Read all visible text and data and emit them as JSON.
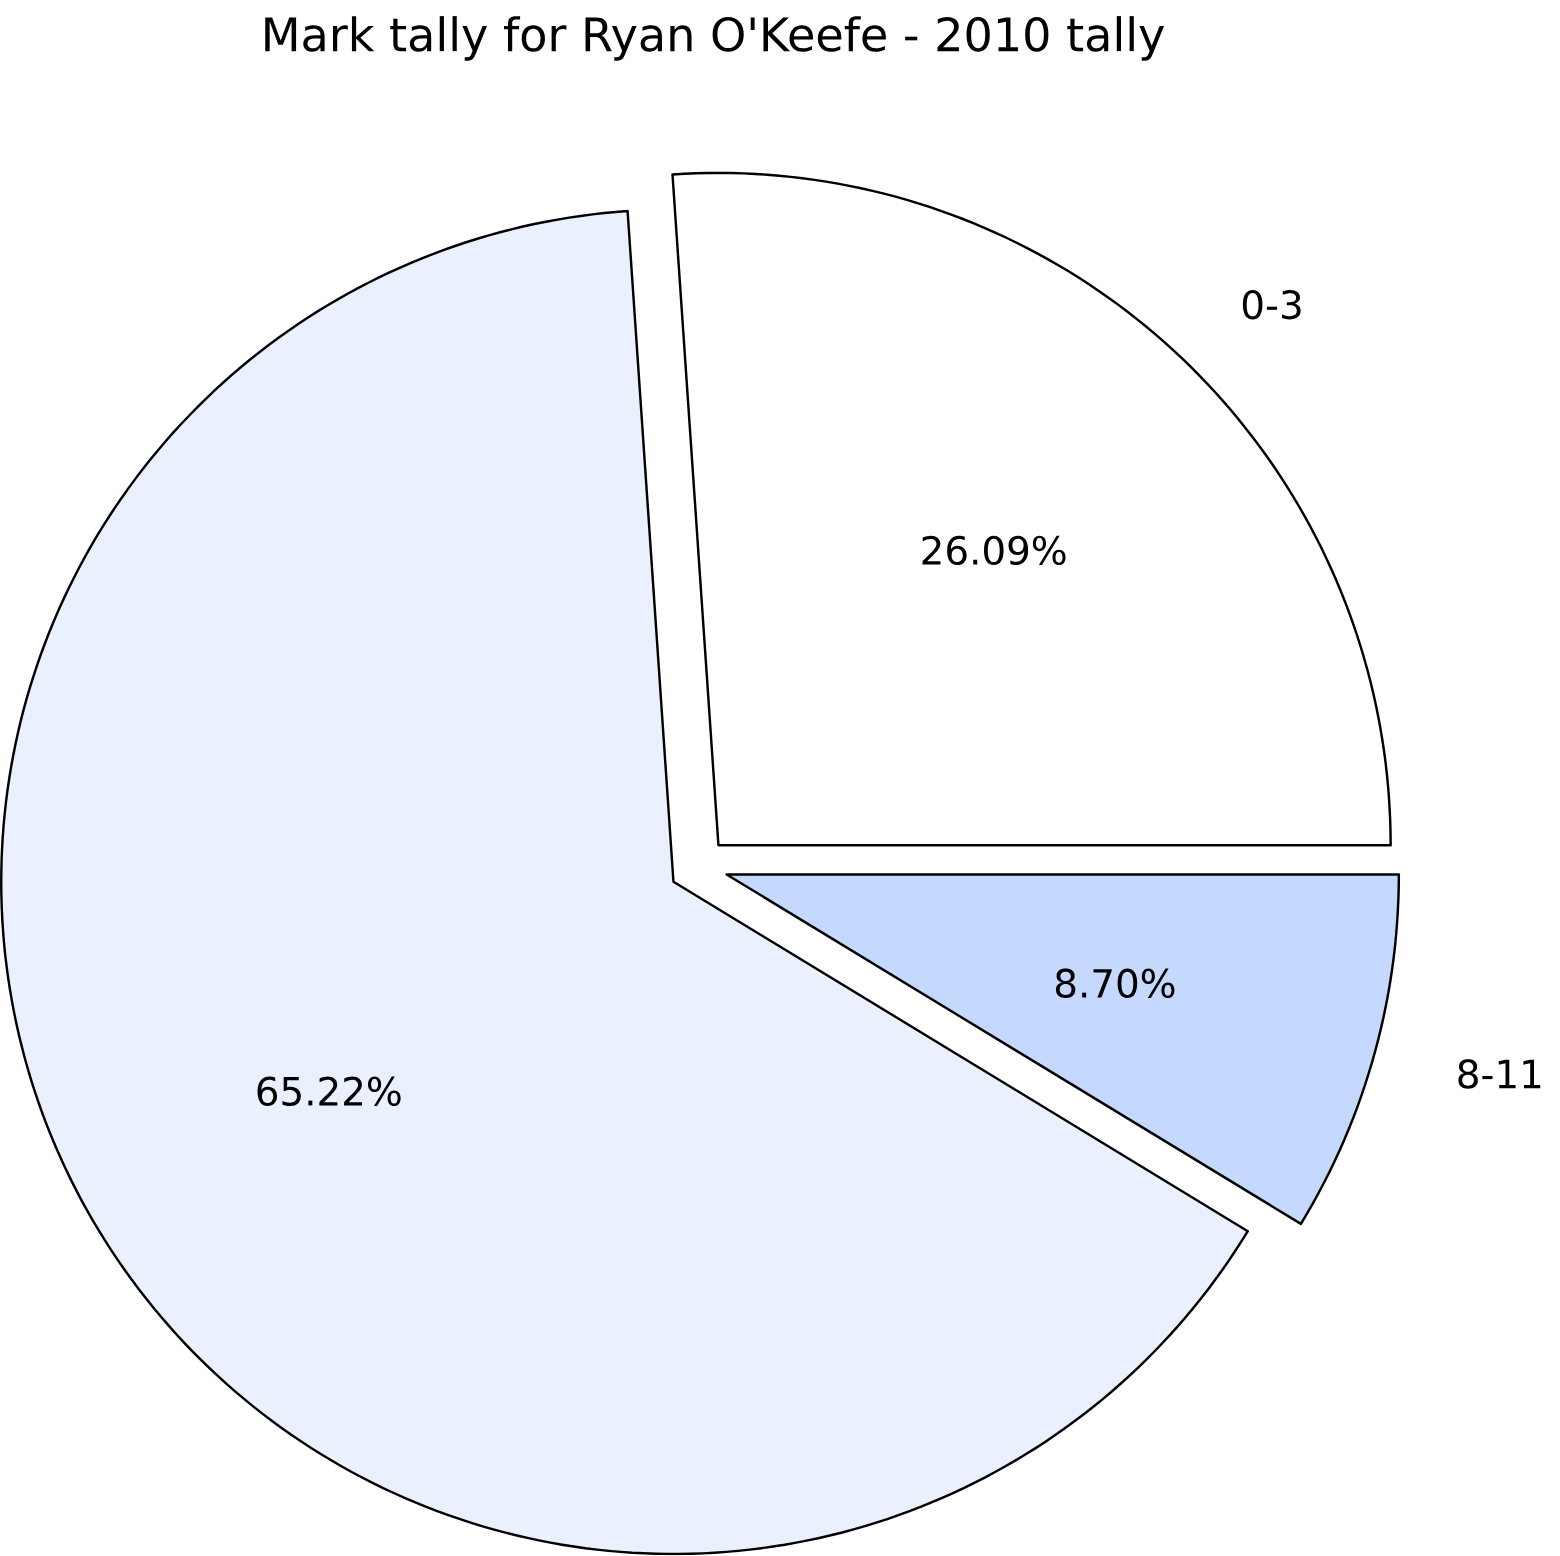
{
  "chart_data": {
    "type": "pie",
    "title": "Mark tally for Ryan O'Keefe - 2010 tally",
    "categories": [
      "0-3",
      null,
      "8-11"
    ],
    "values": [
      26.09,
      65.22,
      8.7
    ],
    "value_labels": [
      "26.09%",
      "65.22%",
      "8.70%"
    ],
    "colors": [
      "#ffffff",
      "#eaf0fe",
      "#c5d8fe"
    ]
  }
}
